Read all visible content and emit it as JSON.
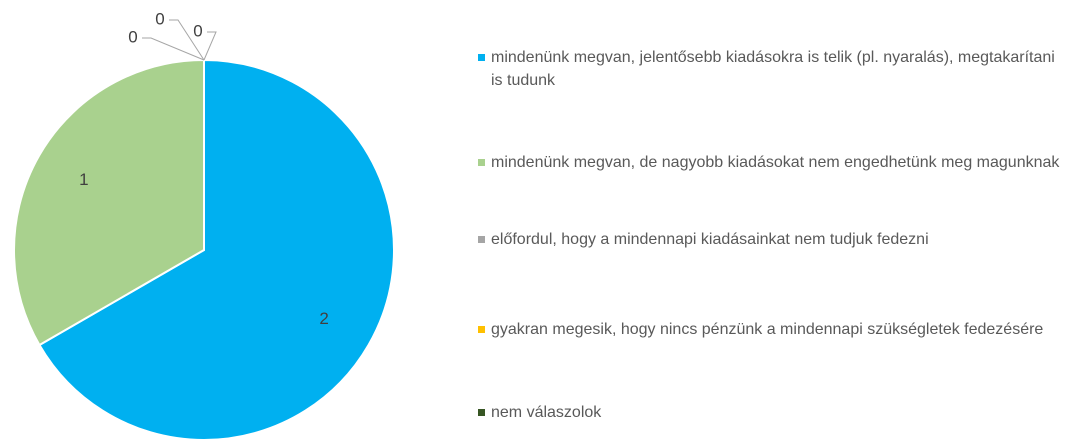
{
  "chart_data": {
    "type": "pie",
    "categories": [
      "mindenünk megvan, jelentősebb kiadásokra is telik (pl. nyaralás), megtakarítani is tudunk",
      "mindenünk megvan, de nagyobb kiadásokat nem engedhetünk meg magunknak",
      "előfordul, hogy a mindennapi kiadásainkat nem tudjuk fedezni",
      "gyakran megesik, hogy nincs pénzünk a mindennapi szükségletek fedezésére",
      "nem válaszolok"
    ],
    "values": [
      2,
      1,
      0,
      0,
      0
    ],
    "colors": [
      "#00b0f0",
      "#a9d18e",
      "#a5a5a5",
      "#ffc000",
      "#375623"
    ],
    "legend": "right"
  }
}
